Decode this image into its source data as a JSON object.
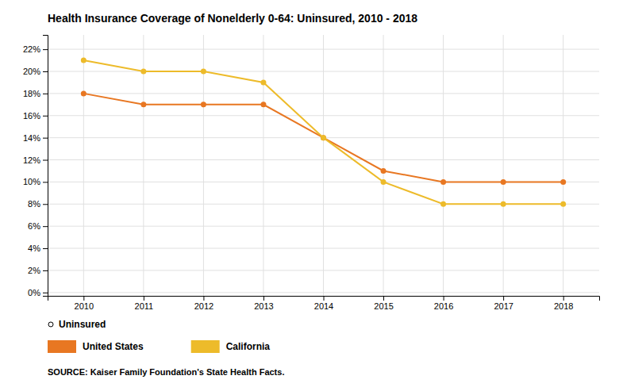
{
  "chart_data": {
    "type": "line",
    "title": "Health Insurance Coverage of Nonelderly 0-64: Uninsured, 2010 - 2018",
    "x": [
      2010,
      2011,
      2012,
      2013,
      2014,
      2015,
      2016,
      2017,
      2018
    ],
    "series": [
      {
        "name": "United States",
        "color": "#E87722",
        "marker": "circle",
        "values": [
          0.18,
          0.17,
          0.17,
          0.17,
          0.14,
          0.11,
          0.1,
          0.1,
          0.1
        ]
      },
      {
        "name": "California",
        "color": "#EDBB2A",
        "marker": "circle",
        "values": [
          0.21,
          0.2,
          0.2,
          0.19,
          0.14,
          0.1,
          0.08,
          0.08,
          0.08
        ]
      }
    ],
    "xlim": [
      2009.4,
      2018.6
    ],
    "xticks": [
      2010,
      2011,
      2012,
      2013,
      2014,
      2015,
      2016,
      2017,
      2018
    ],
    "ylim": [
      -0.003,
      0.233
    ],
    "yticks": [
      {
        "value": 0.0,
        "label": "0%"
      },
      {
        "value": 0.02,
        "label": "2%"
      },
      {
        "value": 0.04,
        "label": "4%"
      },
      {
        "value": 0.06,
        "label": "6%"
      },
      {
        "value": 0.08,
        "label": "8%"
      },
      {
        "value": 0.1,
        "label": "10%"
      },
      {
        "value": 0.12,
        "label": "12%"
      },
      {
        "value": 0.14,
        "label": "14%"
      },
      {
        "value": 0.16,
        "label": "16%"
      },
      {
        "value": 0.18,
        "label": "18%"
      },
      {
        "value": 0.2,
        "label": "20%"
      },
      {
        "value": 0.22,
        "label": "22%"
      }
    ],
    "grid": true,
    "legend": "bottom",
    "legend_title": "Uninsured",
    "source": "SOURCE: Kaiser Family Foundation's State Health Facts."
  }
}
